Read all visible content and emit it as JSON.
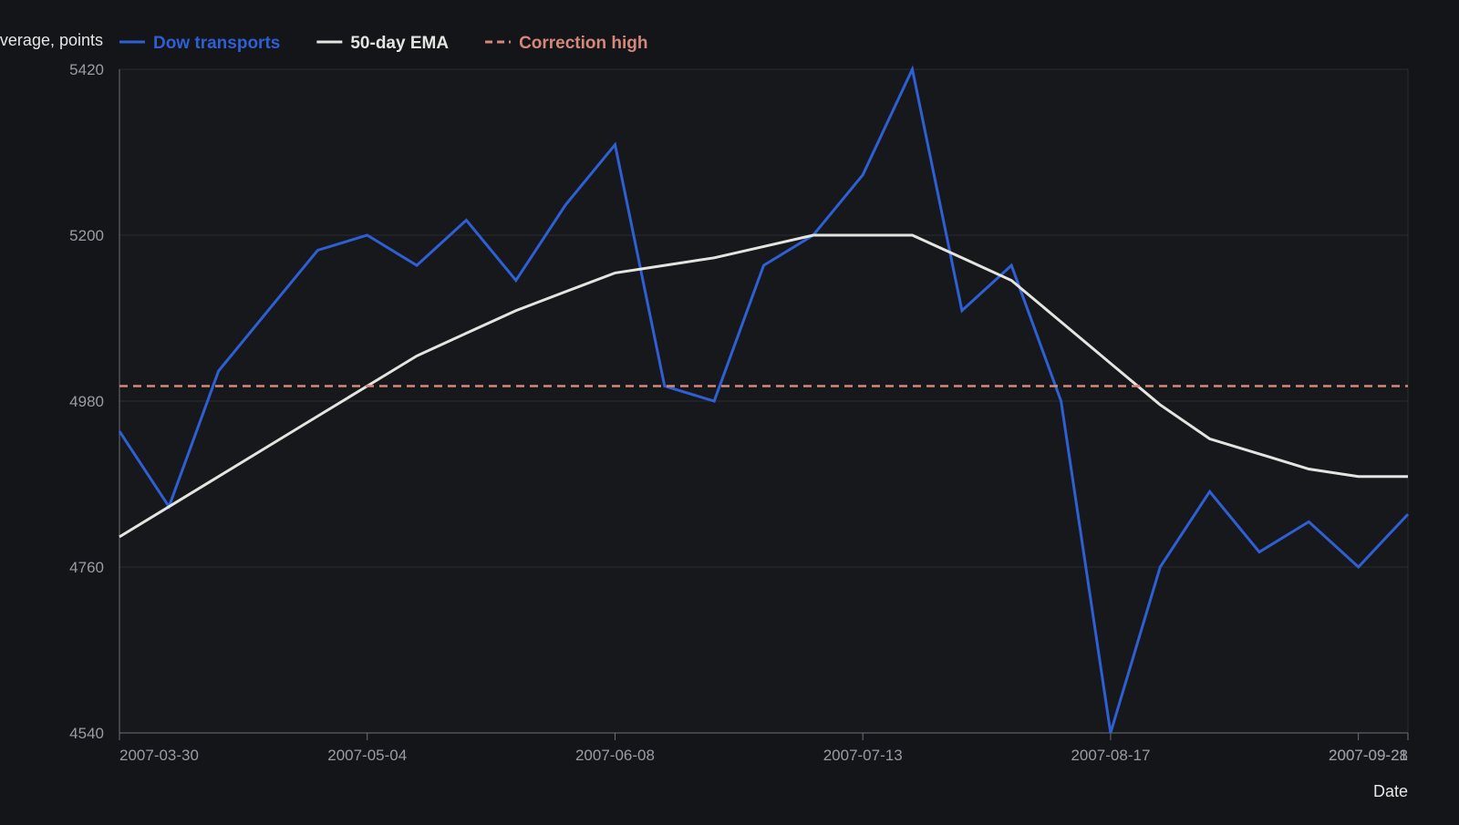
{
  "colors": {
    "background": "#141519",
    "plot_area": "#17181c",
    "grid": "#2a2c31",
    "axis_text": "#9a9ca3",
    "axis_label": "#e6e6e6",
    "tick": "#6d7077"
  },
  "chart_data": {
    "type": "line",
    "title": "",
    "xlabel": "Date",
    "ylabel": "verage, points",
    "x": [
      "2007-03-30",
      "2007-04-06",
      "2007-04-13",
      "2007-04-20",
      "2007-04-27",
      "2007-05-04",
      "2007-05-11",
      "2007-05-18",
      "2007-05-25",
      "2007-06-01",
      "2007-06-08",
      "2007-06-15",
      "2007-06-22",
      "2007-06-29",
      "2007-07-06",
      "2007-07-13",
      "2007-07-20",
      "2007-07-27",
      "2007-08-03",
      "2007-08-10",
      "2007-08-17",
      "2007-08-24",
      "2007-08-31",
      "2007-09-07",
      "2007-09-14",
      "2007-09-21",
      "2007-09-28"
    ],
    "x_ticks": [
      "2007-03-30",
      "2007-05-04",
      "2007-06-08",
      "2007-07-13",
      "2007-08-17",
      "2007-09-21",
      "2007-09-28"
    ],
    "ylim": [
      4540,
      5420
    ],
    "y_ticks": [
      4540,
      4760,
      4980,
      5200,
      5420
    ],
    "grid": true,
    "legend_position": "top-left",
    "series": [
      {
        "name": "Dow transports",
        "color": "#2f5fd4",
        "style": "solid",
        "values": [
          4940,
          4840,
          5020,
          5100,
          5180,
          5200,
          5160,
          5220,
          5140,
          5240,
          5320,
          5000,
          4980,
          5160,
          5200,
          5280,
          5420,
          5100,
          5160,
          4980,
          4540,
          4760,
          4860,
          4780,
          4820,
          4760,
          4830
        ]
      },
      {
        "name": "50-day EMA",
        "color": "#e4e4e0",
        "style": "solid",
        "values": [
          4800,
          4840,
          4880,
          4920,
          4960,
          5000,
          5040,
          5070,
          5100,
          5125,
          5150,
          5160,
          5170,
          5185,
          5200,
          5200,
          5200,
          5170,
          5140,
          5085,
          5030,
          4975,
          4930,
          4910,
          4890,
          4880,
          4880
        ]
      },
      {
        "name": "Correction high",
        "color": "#d4877a",
        "style": "dashed",
        "values": [
          5000,
          5000,
          5000,
          5000,
          5000,
          5000,
          5000,
          5000,
          5000,
          5000,
          5000,
          5000,
          5000,
          5000,
          5000,
          5000,
          5000,
          5000,
          5000,
          5000,
          5000,
          5000,
          5000,
          5000,
          5000,
          5000,
          5000
        ]
      }
    ]
  }
}
